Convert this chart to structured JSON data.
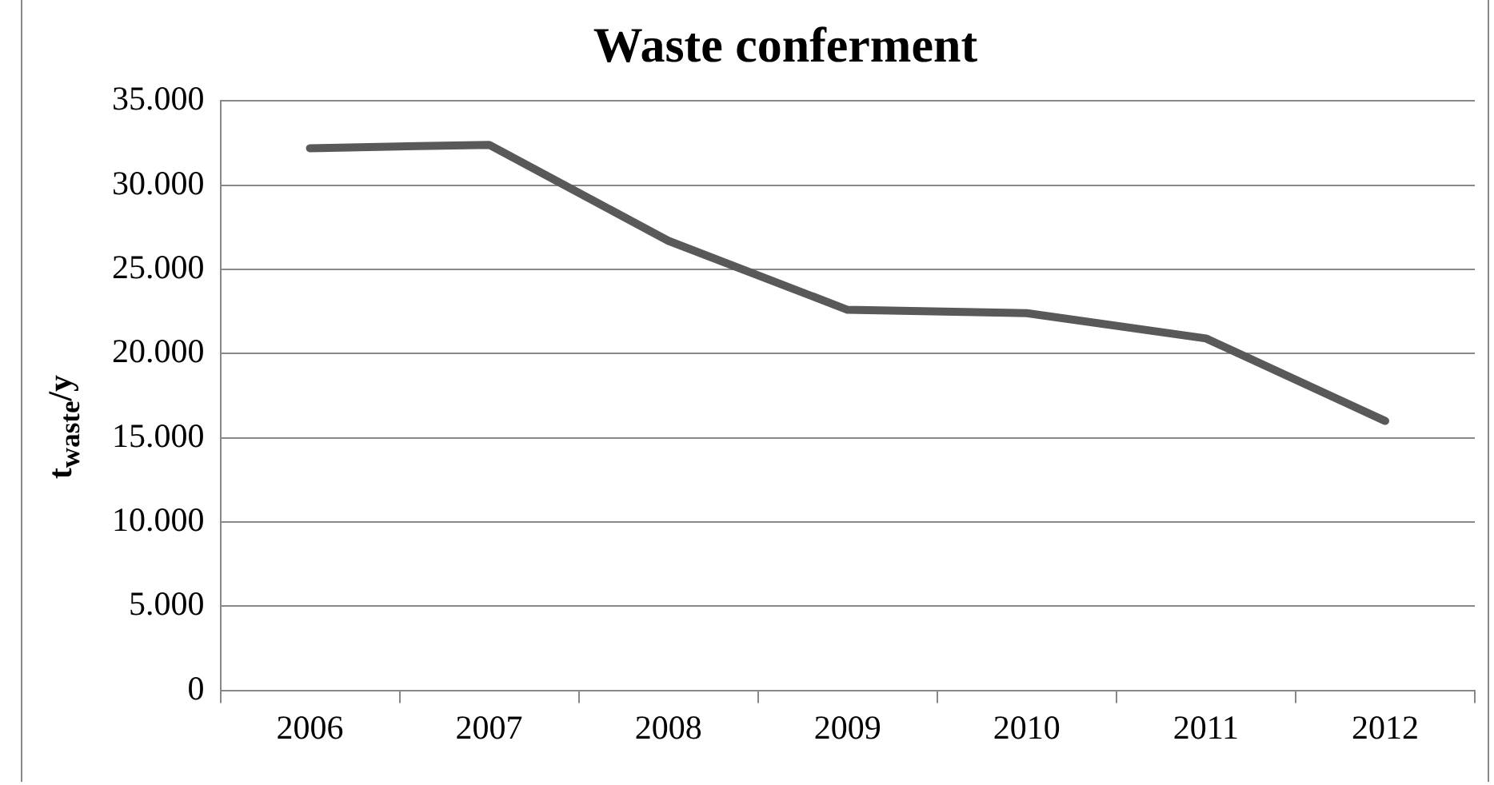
{
  "chart_data": {
    "type": "line",
    "title": "Waste conferment",
    "ylabel": "t$_{waste}$/y",
    "categories": [
      "2006",
      "2007",
      "2008",
      "2009",
      "2010",
      "2011",
      "2012"
    ],
    "series": [
      {
        "color": "#595959",
        "values": [
          32200,
          32400,
          26700,
          22600,
          22400,
          20900,
          16000
        ]
      }
    ],
    "ylim": [
      0,
      35000
    ],
    "yticks": [
      0,
      {
        "value": 5000,
        "label": "5.000"
      },
      {
        "value": 10000,
        "label": "10.000"
      },
      {
        "value": 15000,
        "label": "15.000"
      },
      {
        "value": 20000,
        "label": "20.000"
      },
      {
        "value": 25000,
        "label": "25.000"
      },
      {
        "value": 30000,
        "label": "30.000"
      },
      {
        "value": 35000,
        "label": "35.000"
      }
    ],
    "grid": "y",
    "legend": false,
    "marker": "none",
    "line_style": "solid"
  }
}
